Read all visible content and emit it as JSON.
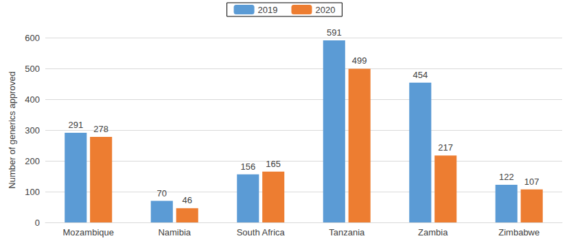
{
  "chart_data": {
    "type": "bar",
    "ylabel": "Number of generics approved",
    "categories": [
      "Mozambique",
      "Namibia",
      "South Africa",
      "Tanzania",
      "Zambia",
      "Zimbabwe"
    ],
    "series": [
      {
        "name": "2019",
        "color": "#5b9bd5",
        "values": [
          291,
          70,
          156,
          591,
          454,
          122
        ]
      },
      {
        "name": "2020",
        "color": "#ed7d31",
        "values": [
          278,
          46,
          165,
          499,
          217,
          107
        ]
      }
    ],
    "ylim": [
      0,
      600
    ],
    "yticks": [
      0,
      100,
      200,
      300,
      400,
      500,
      600
    ],
    "grid": true,
    "legend": "top",
    "data_labels": true
  }
}
